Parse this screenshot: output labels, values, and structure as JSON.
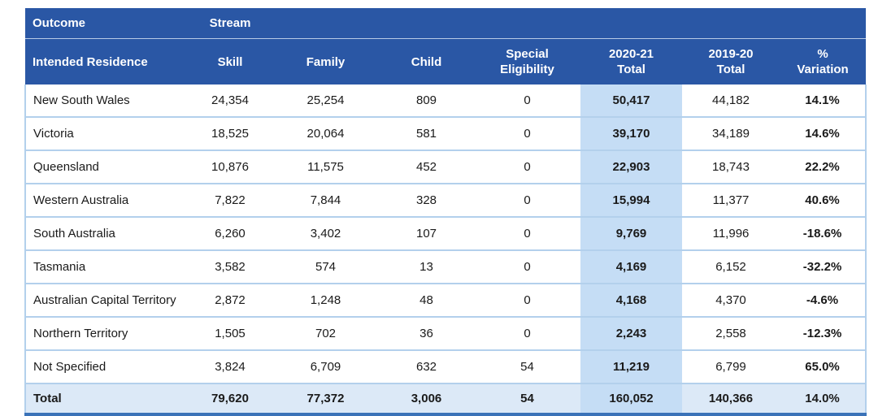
{
  "colors": {
    "header_bg": "#2a57a5",
    "header_text": "#ffffff",
    "header_divider": "#b8cbe6",
    "highlight_col_bg": "#c5ddf5",
    "total_row_bg": "#dce9f7",
    "row_divider": "#b3d0ec",
    "bottom_border": "#3a72b8",
    "body_text": "#1a1a1a"
  },
  "table": {
    "group_header": {
      "outcome": "Outcome",
      "stream": "Stream"
    },
    "columns": [
      {
        "l1": "Intended Residence"
      },
      {
        "l1": "Skill"
      },
      {
        "l1": "Family"
      },
      {
        "l1": "Child"
      },
      {
        "l1": "Special",
        "l2": "Eligibility"
      },
      {
        "l1": "2020-21",
        "l2": "Total"
      },
      {
        "l1": "2019-20",
        "l2": "Total"
      },
      {
        "l1": "%",
        "l2": "Variation"
      }
    ],
    "rows": [
      {
        "residence": "New South Wales",
        "skill": "24,354",
        "family": "25,254",
        "child": "809",
        "special": "0",
        "total_2021": "50,417",
        "total_1920": "44,182",
        "variation": "14.1%"
      },
      {
        "residence": "Victoria",
        "skill": "18,525",
        "family": "20,064",
        "child": "581",
        "special": "0",
        "total_2021": "39,170",
        "total_1920": "34,189",
        "variation": "14.6%"
      },
      {
        "residence": "Queensland",
        "skill": "10,876",
        "family": "11,575",
        "child": "452",
        "special": "0",
        "total_2021": "22,903",
        "total_1920": "18,743",
        "variation": "22.2%"
      },
      {
        "residence": "Western Australia",
        "skill": "7,822",
        "family": "7,844",
        "child": "328",
        "special": "0",
        "total_2021": "15,994",
        "total_1920": "11,377",
        "variation": "40.6%"
      },
      {
        "residence": "South Australia",
        "skill": "6,260",
        "family": "3,402",
        "child": "107",
        "special": "0",
        "total_2021": "9,769",
        "total_1920": "11,996",
        "variation": "-18.6%"
      },
      {
        "residence": "Tasmania",
        "skill": "3,582",
        "family": "574",
        "child": "13",
        "special": "0",
        "total_2021": "4,169",
        "total_1920": "6,152",
        "variation": "-32.2%"
      },
      {
        "residence": "Australian Capital Territory",
        "skill": "2,872",
        "family": "1,248",
        "child": "48",
        "special": "0",
        "total_2021": "4,168",
        "total_1920": "4,370",
        "variation": "-4.6%"
      },
      {
        "residence": "Northern Territory",
        "skill": "1,505",
        "family": "702",
        "child": "36",
        "special": "0",
        "total_2021": "2,243",
        "total_1920": "2,558",
        "variation": "-12.3%"
      },
      {
        "residence": "Not Specified",
        "skill": "3,824",
        "family": "6,709",
        "child": "632",
        "special": "54",
        "total_2021": "11,219",
        "total_1920": "6,799",
        "variation": "65.0%"
      }
    ],
    "total": {
      "residence": "Total",
      "skill": "79,620",
      "family": "77,372",
      "child": "3,006",
      "special": "54",
      "total_2021": "160,052",
      "total_1920": "140,366",
      "variation": "14.0%"
    }
  }
}
